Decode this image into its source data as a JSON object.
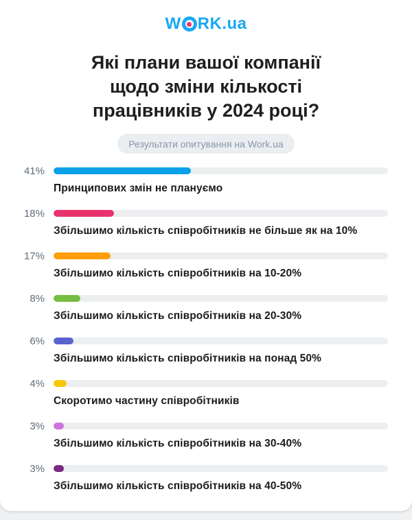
{
  "logo": {
    "word_start": "W",
    "word_end": "RK",
    "suffix": ".ua"
  },
  "title": {
    "lines": [
      "Які плани вашої компанії",
      "щодо зміни кількості",
      "працівників у 2024 році?"
    ]
  },
  "subtitle_badge": "Результати опитування на Work.ua",
  "colors": {
    "logo_blue": "#18A9F1",
    "logo_dot_pink": "#F0326E",
    "title_text": "#1D1E20",
    "badge_background": "#EBEEF1",
    "badge_text": "#8897A6",
    "percent_text": "#5F6D7A",
    "answer_text": "#191A1C",
    "bar_track": "#ECEEF0",
    "card_background": "#FFFFFF",
    "page_background": "#EFF1F3"
  },
  "chart_data": {
    "type": "bar",
    "orientation": "horizontal",
    "title": "Які плани вашої компанії щодо зміни кількості працівників у 2024 році?",
    "subtitle": "Результати опитування на Work.ua",
    "unit": "%",
    "xlim": [
      0,
      100
    ],
    "grid": false,
    "legend": false,
    "categories": [
      "Принципових змін не плануємо",
      "Збільшимо кількість співробітників не більше як на 10%",
      "Збільшимо кількість співробітників на 10-20%",
      "Збільшимо кількість співробітників на 20-30%",
      "Збільшимо кількість співробітників на понад 50%",
      "Скоротимо частину співробітників",
      "Збільшимо кількість співробітників на 30-40%",
      "Збільшимо кількість співробітників на 40-50%"
    ],
    "values": [
      41,
      18,
      17,
      8,
      6,
      4,
      3,
      3
    ],
    "value_labels": [
      "41%",
      "18%",
      "17%",
      "8%",
      "6%",
      "4%",
      "3%",
      "3%"
    ],
    "bar_colors": [
      "#09A2E8",
      "#E8326D",
      "#FF9D0A",
      "#76BD42",
      "#5A63CE",
      "#F7C608",
      "#CB74DB",
      "#7A2B81"
    ]
  }
}
